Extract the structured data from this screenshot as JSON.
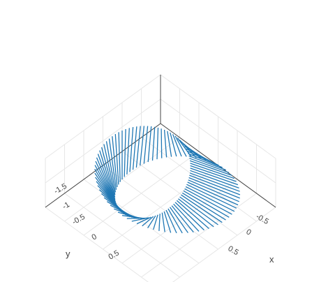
{
  "chart_data": {
    "type": "scatter3d",
    "mode": "lines",
    "series": [
      {
        "color": "#1f77b4",
        "description": "Mobius-strip-like ribbon: many radial line segments sweeping around a loop",
        "parametric": {
          "u_range": [
            0,
            6.283
          ],
          "segments": 86,
          "v_range": [
            -0.5,
            0.5
          ]
        }
      }
    ],
    "axes": {
      "x": {
        "title": "x",
        "ticks": [
          "-0.5",
          "0",
          "0.5"
        ],
        "range": [
          -1.5,
          1.5
        ]
      },
      "y": {
        "title": "y",
        "ticks": [
          "-1.5",
          "-1",
          "-0.5",
          "0",
          "0.5"
        ],
        "range": [
          -1.5,
          1.5
        ]
      },
      "z": {
        "title": "",
        "ticks": [],
        "range": [
          -0.5,
          0.5
        ]
      }
    },
    "grid": true,
    "background": "#ffffff",
    "grid_color": "#e6e6e6",
    "axis_color": "#444444"
  }
}
